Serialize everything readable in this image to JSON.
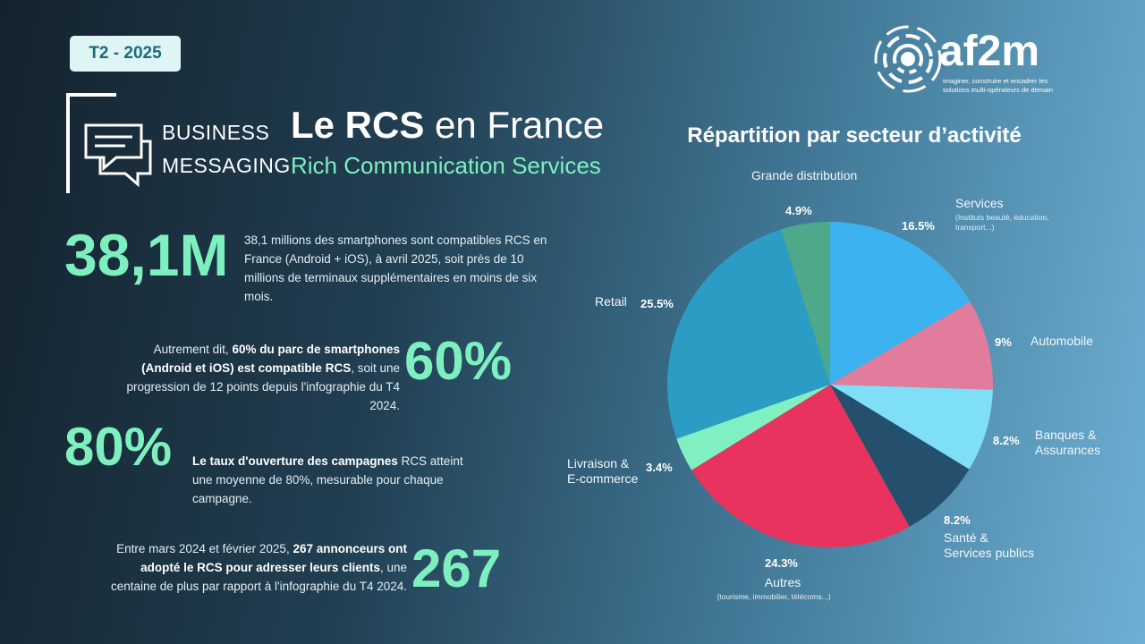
{
  "badge": "T2 - 2025",
  "logo": {
    "name": "af2m",
    "tagline": "imaginer, construire et encadrer les solutions multi-opérateurs de demain"
  },
  "header": {
    "kicker_line1": "BUSINESS",
    "kicker_line2": "MESSAGING",
    "title_bold": "Le RCS",
    "title_rest": "en France",
    "subtitle": "Rich Communication Services"
  },
  "stats": [
    {
      "figure": "38,1M",
      "text": [
        {
          "text": "38,1 millions des smartphones sont compatibles RCS en France (Android + iOS), à avril 2025, soit près de 10 millions de terminaux supplémentaires en moins de six mois.",
          "bold": false
        }
      ]
    },
    {
      "figure": "60%",
      "text": [
        {
          "text": "Autrement dit, ",
          "bold": false
        },
        {
          "text": "60% du parc de smartphones (Android et iOS) est compatible RCS",
          "bold": true
        },
        {
          "text": ", soit une progression de 12 points depuis l'infographie du T4 2024.",
          "bold": false
        }
      ]
    },
    {
      "figure": "80%",
      "text": [
        {
          "text": "Le taux d'ouverture des campagnes",
          "bold": true
        },
        {
          "text": " RCS atteint une moyenne de 80%, mesurable pour chaque campagne.",
          "bold": false
        }
      ]
    },
    {
      "figure": "267",
      "text": [
        {
          "text": "Entre mars 2024 et février 2025, ",
          "bold": false
        },
        {
          "text": "267 annonceurs ont adopté le RCS pour adresser leurs clients",
          "bold": true
        },
        {
          "text": ", une centaine de plus par rapport à l'infographie du T4 2024.",
          "bold": false
        }
      ]
    }
  ],
  "chart_data": {
    "type": "pie",
    "title": "Répartition par secteur d’activité",
    "categories": [
      "Services",
      "Automobile",
      "Banques & Assurances",
      "Santé & Services publics",
      "Autres",
      "Livraison & E-commerce",
      "Retail",
      "Grande distribution"
    ],
    "category_notes": [
      "(Instituts beauté, éducation, transport...)",
      null,
      null,
      null,
      "(tourisme, immobilier, télécoms...)",
      null,
      null,
      null
    ],
    "values": [
      16.5,
      9,
      8.2,
      8.2,
      24.3,
      3.4,
      25.5,
      4.9
    ],
    "value_labels": [
      "16.5%",
      "9%",
      "8.2%",
      "8.2%",
      "24.3%",
      "3.4%",
      "25.5%",
      "4.9%"
    ],
    "colors": [
      "#3db2f0",
      "#e27c9c",
      "#7fdff7",
      "#24506d",
      "#e8335f",
      "#80f0c2",
      "#2b9dc4",
      "#4ea98a"
    ]
  }
}
